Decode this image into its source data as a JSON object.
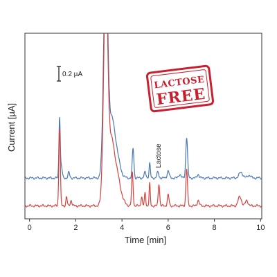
{
  "chart_data": {
    "type": "line",
    "xlabel": "Time [min]",
    "ylabel": "Current [µA]",
    "x_ticks": [
      0,
      2,
      4,
      6,
      8,
      10
    ],
    "xlim": [
      -0.2,
      10.05
    ],
    "ylim": [
      0,
      1
    ],
    "scale_bar": {
      "label": "0.2 µA",
      "size": 0.2
    },
    "annotation": {
      "text": "Lactose",
      "x": 5.6
    },
    "stamp": {
      "line1": "LACTOSE",
      "line2": "FREE",
      "color": "#c8202f"
    },
    "series": [
      {
        "color": "#4a77b5",
        "baseline": 0.22,
        "peaks": [
          [
            1.3,
            0.33,
            0.04
          ],
          [
            1.38,
            0.06,
            0.05
          ],
          [
            1.7,
            0.03,
            0.05
          ],
          [
            3.3,
            1.2,
            0.13
          ],
          [
            3.55,
            0.12,
            0.12
          ],
          [
            3.65,
            0.22,
            0.25
          ],
          [
            4.48,
            0.16,
            0.05
          ],
          [
            5.0,
            0.03,
            0.06
          ],
          [
            5.2,
            0.08,
            0.04
          ],
          [
            5.55,
            0.03,
            0.06
          ],
          [
            6.0,
            0.04,
            0.06
          ],
          [
            6.5,
            0.02,
            0.07
          ],
          [
            6.8,
            0.22,
            0.055
          ],
          [
            7.3,
            0.02,
            0.06
          ],
          [
            9.15,
            0.03,
            0.12
          ],
          [
            9.5,
            0.015,
            0.1
          ]
        ]
      },
      {
        "color": "#d8413c",
        "baseline": 0.07,
        "peaks": [
          [
            1.3,
            0.42,
            0.045
          ],
          [
            1.6,
            0.05,
            0.04
          ],
          [
            1.8,
            0.03,
            0.05
          ],
          [
            3.3,
            1.2,
            0.13
          ],
          [
            3.55,
            0.12,
            0.12
          ],
          [
            3.65,
            0.25,
            0.3
          ],
          [
            4.45,
            0.18,
            0.045
          ],
          [
            4.85,
            0.05,
            0.04
          ],
          [
            5.0,
            0.07,
            0.04
          ],
          [
            5.2,
            0.12,
            0.035
          ],
          [
            5.6,
            0.12,
            0.045
          ],
          [
            6.0,
            0.06,
            0.05
          ],
          [
            6.8,
            0.2,
            0.05
          ],
          [
            7.3,
            0.03,
            0.06
          ],
          [
            9.1,
            0.05,
            0.1
          ],
          [
            9.4,
            0.03,
            0.08
          ]
        ]
      }
    ]
  }
}
